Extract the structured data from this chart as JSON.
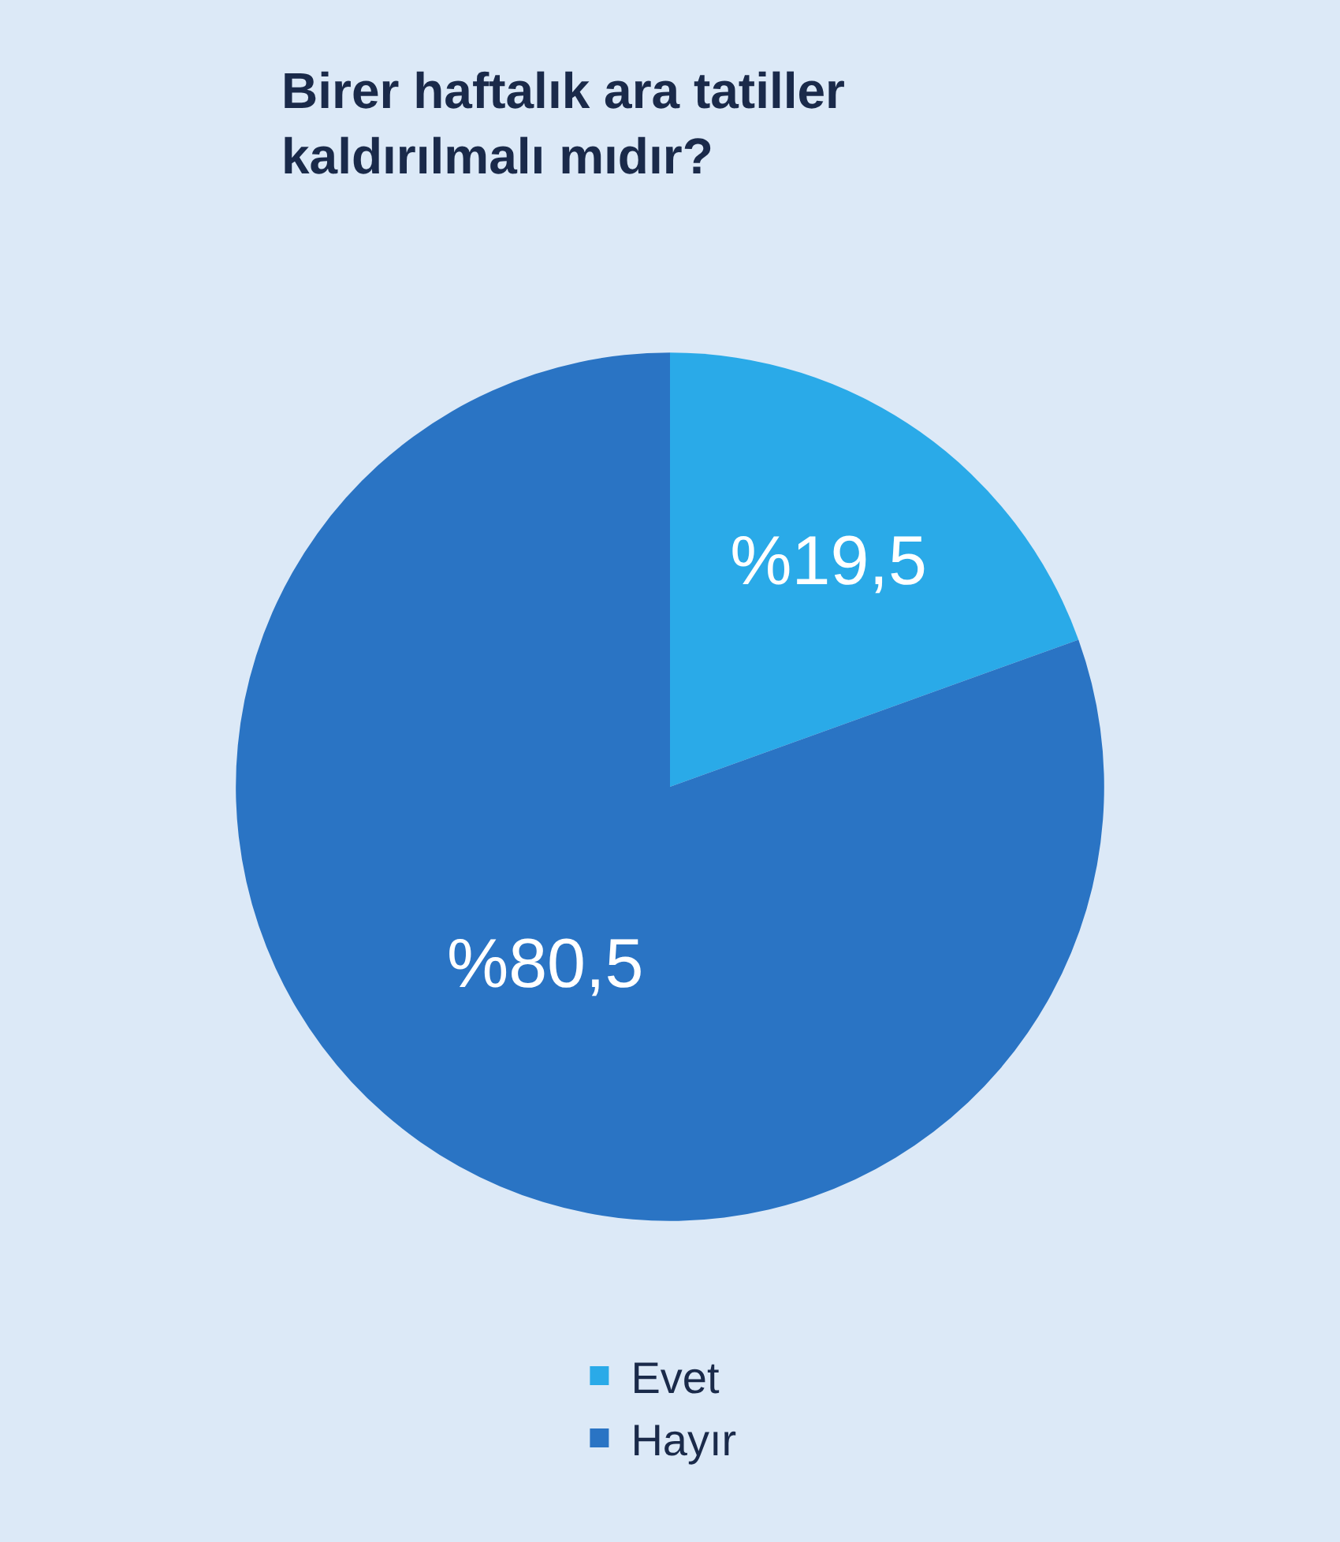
{
  "chart_data": {
    "type": "pie",
    "title": "Birer haftalık ara tatiller\nkaldırılmalı mıdır?",
    "categories": [
      "Evet",
      "Hayır"
    ],
    "values": [
      19.5,
      80.5
    ],
    "colors": [
      "#2aaae8",
      "#2a74c4"
    ],
    "value_labels": [
      "%19,5",
      "%80,5"
    ],
    "legend": "bottom"
  }
}
